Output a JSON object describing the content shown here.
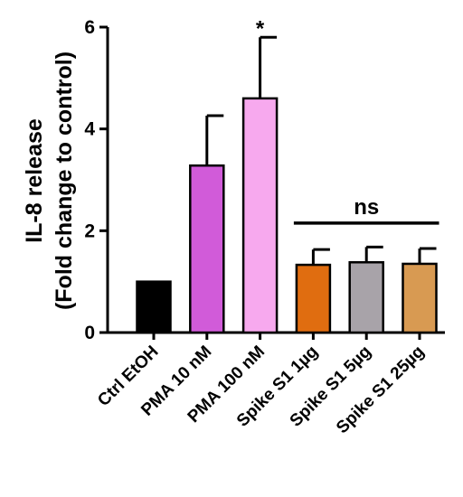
{
  "chart_data": {
    "type": "bar",
    "ylabel_line1": "IL-8 release",
    "ylabel_line2": "(Fold change to control)",
    "ylim": [
      0,
      6
    ],
    "yticks": [
      "0",
      "2",
      "4",
      "6"
    ],
    "ytick_values": [
      0,
      2,
      4,
      6
    ],
    "grid": false,
    "categories": [
      "Ctrl EtOH",
      "PMA 10 nM",
      "PMA 100 nM",
      "Spike S1 1µg",
      "Spike S1 5µg",
      "Spike S1 25µg"
    ],
    "values": [
      1.0,
      3.28,
      4.6,
      1.33,
      1.38,
      1.35
    ],
    "errors": [
      0,
      0.98,
      1.2,
      0.3,
      0.3,
      0.3
    ],
    "colors": [
      "#000000",
      "#d15bd9",
      "#f7a9ee",
      "#e06d10",
      "#a8a3a9",
      "#d89a52"
    ],
    "annotations": [
      {
        "text": "*",
        "category_index": 2
      },
      {
        "text": "ns",
        "from_index": 3,
        "to_index": 5,
        "y": 2.15
      }
    ]
  }
}
